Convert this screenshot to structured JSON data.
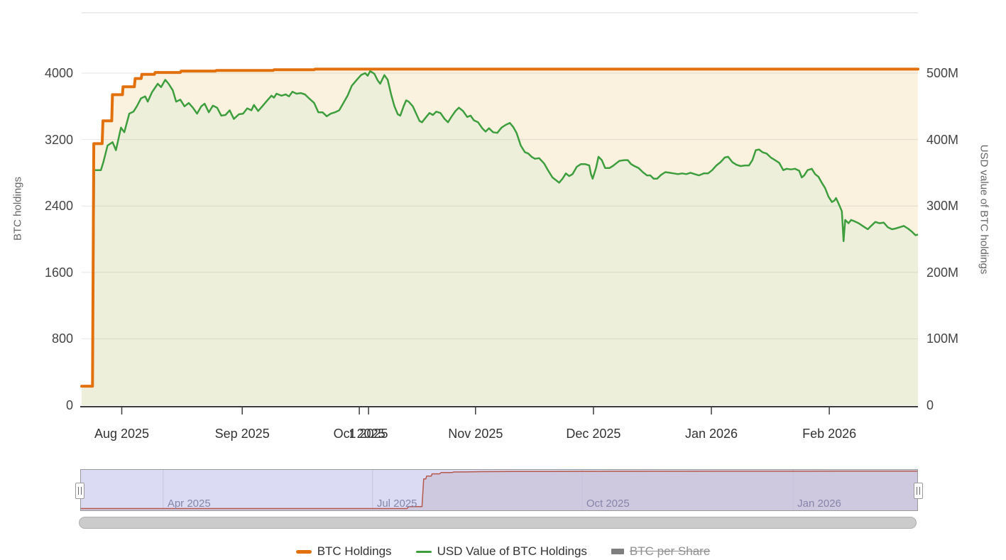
{
  "chart_data": {
    "type": "area",
    "title": "",
    "left_axis": {
      "title": "BTC holdings",
      "tick_values": [
        0,
        800,
        1600,
        2400,
        3200,
        4000
      ],
      "range": [
        0,
        4727
      ],
      "unit": "BTC"
    },
    "right_axis": {
      "title": "USD value of BTC holdings",
      "tick_labels": [
        "0",
        "100M",
        "200M",
        "300M",
        "400M",
        "500M"
      ],
      "tick_values": [
        0,
        100,
        200,
        300,
        400,
        500
      ],
      "range": [
        0,
        591
      ],
      "unit": "USD millions"
    },
    "x_axis": {
      "ticks": [
        {
          "label": "Aug 2025",
          "t": 0.048
        },
        {
          "label": "Sep 2025",
          "t": 0.192
        },
        {
          "label": "Oct 2025",
          "t": 0.332
        },
        {
          "label": "1 2025",
          "t": 0.343,
          "overlapping": true
        },
        {
          "label": "Nov 2025",
          "t": 0.471
        },
        {
          "label": "Dec 2025",
          "t": 0.612
        },
        {
          "label": "Jan 2026",
          "t": 0.753
        },
        {
          "label": "Feb 2026",
          "t": 0.894
        }
      ]
    },
    "series": [
      {
        "name": "BTC Holdings",
        "axis": "left",
        "color": "#E2710D",
        "fill": "#FAF2DF",
        "line_width": 4,
        "points": [
          [
            0.0,
            230
          ],
          [
            0.013,
            230
          ],
          [
            0.0145,
            3150
          ],
          [
            0.0245,
            3150
          ],
          [
            0.0255,
            3425
          ],
          [
            0.036,
            3425
          ],
          [
            0.0368,
            3740
          ],
          [
            0.0488,
            3740
          ],
          [
            0.0495,
            3835
          ],
          [
            0.063,
            3835
          ],
          [
            0.064,
            3935
          ],
          [
            0.0712,
            3935
          ],
          [
            0.072,
            3985
          ],
          [
            0.087,
            3985
          ],
          [
            0.0878,
            4008
          ],
          [
            0.118,
            4008
          ],
          [
            0.119,
            4025
          ],
          [
            0.16,
            4025
          ],
          [
            0.161,
            4032
          ],
          [
            0.229,
            4032
          ],
          [
            0.23,
            4040
          ],
          [
            0.278,
            4040
          ],
          [
            0.279,
            4048
          ],
          [
            1.0,
            4048
          ]
        ]
      },
      {
        "name": "USD Value of BTC Holdings",
        "axis": "right",
        "color": "#3E9E3E",
        "fill": "#EDEFDB",
        "line_width": 2.5,
        "points": [
          [
            0.0,
            29
          ],
          [
            0.013,
            29
          ],
          [
            0.015,
            354
          ],
          [
            0.023,
            354
          ],
          [
            0.026,
            366
          ],
          [
            0.031,
            391
          ],
          [
            0.037,
            396
          ],
          [
            0.041,
            384
          ],
          [
            0.047,
            418
          ],
          [
            0.051,
            411
          ],
          [
            0.057,
            439
          ],
          [
            0.062,
            442
          ],
          [
            0.066,
            450
          ],
          [
            0.071,
            462
          ],
          [
            0.076,
            465
          ],
          [
            0.079,
            457
          ],
          [
            0.084,
            471
          ],
          [
            0.091,
            484
          ],
          [
            0.095,
            479
          ],
          [
            0.1,
            490
          ],
          [
            0.104,
            484
          ],
          [
            0.109,
            474
          ],
          [
            0.113,
            457
          ],
          [
            0.118,
            460
          ],
          [
            0.123,
            450
          ],
          [
            0.128,
            455
          ],
          [
            0.133,
            448
          ],
          [
            0.138,
            439
          ],
          [
            0.143,
            450
          ],
          [
            0.147,
            454
          ],
          [
            0.152,
            441
          ],
          [
            0.157,
            451
          ],
          [
            0.162,
            448
          ],
          [
            0.167,
            436
          ],
          [
            0.172,
            437
          ],
          [
            0.177,
            444
          ],
          [
            0.182,
            431
          ],
          [
            0.188,
            438
          ],
          [
            0.193,
            439
          ],
          [
            0.198,
            447
          ],
          [
            0.203,
            444
          ],
          [
            0.206,
            452
          ],
          [
            0.211,
            443
          ],
          [
            0.216,
            450
          ],
          [
            0.222,
            459
          ],
          [
            0.227,
            466
          ],
          [
            0.23,
            463
          ],
          [
            0.233,
            469
          ],
          [
            0.239,
            466
          ],
          [
            0.244,
            468
          ],
          [
            0.248,
            465
          ],
          [
            0.252,
            472
          ],
          [
            0.257,
            469
          ],
          [
            0.262,
            470
          ],
          [
            0.267,
            468
          ],
          [
            0.272,
            462
          ],
          [
            0.278,
            455
          ],
          [
            0.283,
            441
          ],
          [
            0.288,
            441
          ],
          [
            0.293,
            435
          ],
          [
            0.298,
            439
          ],
          [
            0.303,
            441
          ],
          [
            0.308,
            444
          ],
          [
            0.313,
            455
          ],
          [
            0.318,
            466
          ],
          [
            0.323,
            481
          ],
          [
            0.329,
            490
          ],
          [
            0.334,
            497
          ],
          [
            0.339,
            500
          ],
          [
            0.342,
            496
          ],
          [
            0.345,
            503
          ],
          [
            0.35,
            499
          ],
          [
            0.354,
            489
          ],
          [
            0.357,
            484
          ],
          [
            0.362,
            497
          ],
          [
            0.366,
            490
          ],
          [
            0.37,
            468
          ],
          [
            0.374,
            450
          ],
          [
            0.378,
            438
          ],
          [
            0.381,
            436
          ],
          [
            0.385,
            450
          ],
          [
            0.388,
            459
          ],
          [
            0.391,
            457
          ],
          [
            0.396,
            450
          ],
          [
            0.4,
            439
          ],
          [
            0.404,
            428
          ],
          [
            0.407,
            426
          ],
          [
            0.412,
            434
          ],
          [
            0.416,
            440
          ],
          [
            0.42,
            437
          ],
          [
            0.424,
            442
          ],
          [
            0.429,
            440
          ],
          [
            0.434,
            431
          ],
          [
            0.438,
            426
          ],
          [
            0.442,
            434
          ],
          [
            0.447,
            443
          ],
          [
            0.451,
            448
          ],
          [
            0.456,
            443
          ],
          [
            0.461,
            434
          ],
          [
            0.465,
            436
          ],
          [
            0.469,
            429
          ],
          [
            0.474,
            426
          ],
          [
            0.479,
            417
          ],
          [
            0.483,
            412
          ],
          [
            0.487,
            417
          ],
          [
            0.492,
            411
          ],
          [
            0.497,
            410
          ],
          [
            0.502,
            418
          ],
          [
            0.507,
            422
          ],
          [
            0.512,
            425
          ],
          [
            0.516,
            419
          ],
          [
            0.52,
            410
          ],
          [
            0.525,
            391
          ],
          [
            0.53,
            381
          ],
          [
            0.534,
            379
          ],
          [
            0.538,
            374
          ],
          [
            0.542,
            371
          ],
          [
            0.547,
            372
          ],
          [
            0.553,
            364
          ],
          [
            0.558,
            353
          ],
          [
            0.563,
            343
          ],
          [
            0.568,
            338
          ],
          [
            0.571,
            335
          ],
          [
            0.575,
            341
          ],
          [
            0.579,
            349
          ],
          [
            0.583,
            345
          ],
          [
            0.587,
            348
          ],
          [
            0.592,
            359
          ],
          [
            0.597,
            363
          ],
          [
            0.602,
            363
          ],
          [
            0.607,
            361
          ],
          [
            0.609,
            348
          ],
          [
            0.611,
            341
          ],
          [
            0.615,
            357
          ],
          [
            0.618,
            374
          ],
          [
            0.622,
            369
          ],
          [
            0.626,
            357
          ],
          [
            0.631,
            357
          ],
          [
            0.635,
            360
          ],
          [
            0.639,
            364
          ],
          [
            0.643,
            368
          ],
          [
            0.649,
            369
          ],
          [
            0.653,
            369
          ],
          [
            0.657,
            363
          ],
          [
            0.661,
            360
          ],
          [
            0.666,
            357
          ],
          [
            0.671,
            351
          ],
          [
            0.676,
            346
          ],
          [
            0.68,
            346
          ],
          [
            0.684,
            341
          ],
          [
            0.688,
            341
          ],
          [
            0.693,
            347
          ],
          [
            0.698,
            351
          ],
          [
            0.703,
            350
          ],
          [
            0.708,
            349
          ],
          [
            0.713,
            348
          ],
          [
            0.718,
            349
          ],
          [
            0.723,
            348
          ],
          [
            0.728,
            350
          ],
          [
            0.733,
            348
          ],
          [
            0.738,
            346
          ],
          [
            0.744,
            349
          ],
          [
            0.749,
            349
          ],
          [
            0.754,
            354
          ],
          [
            0.759,
            361
          ],
          [
            0.764,
            366
          ],
          [
            0.769,
            373
          ],
          [
            0.773,
            374
          ],
          [
            0.778,
            366
          ],
          [
            0.783,
            362
          ],
          [
            0.788,
            360
          ],
          [
            0.793,
            361
          ],
          [
            0.798,
            361
          ],
          [
            0.802,
            369
          ],
          [
            0.806,
            384
          ],
          [
            0.81,
            385
          ],
          [
            0.814,
            381
          ],
          [
            0.819,
            379
          ],
          [
            0.824,
            373
          ],
          [
            0.829,
            369
          ],
          [
            0.834,
            365
          ],
          [
            0.839,
            354
          ],
          [
            0.843,
            356
          ],
          [
            0.848,
            355
          ],
          [
            0.853,
            356
          ],
          [
            0.858,
            353
          ],
          [
            0.861,
            343
          ],
          [
            0.864,
            346
          ],
          [
            0.868,
            354
          ],
          [
            0.873,
            356
          ],
          [
            0.877,
            348
          ],
          [
            0.881,
            344
          ],
          [
            0.885,
            335
          ],
          [
            0.889,
            327
          ],
          [
            0.893,
            314
          ],
          [
            0.897,
            306
          ],
          [
            0.9,
            308
          ],
          [
            0.902,
            312
          ],
          [
            0.906,
            301
          ],
          [
            0.909,
            292
          ],
          [
            0.911,
            247
          ],
          [
            0.913,
            279
          ],
          [
            0.917,
            274
          ],
          [
            0.92,
            279
          ],
          [
            0.924,
            277
          ],
          [
            0.929,
            274
          ],
          [
            0.935,
            269
          ],
          [
            0.94,
            265
          ],
          [
            0.944,
            270
          ],
          [
            0.949,
            276
          ],
          [
            0.954,
            274
          ],
          [
            0.959,
            275
          ],
          [
            0.964,
            268
          ],
          [
            0.969,
            265
          ],
          [
            0.973,
            266
          ],
          [
            0.978,
            268
          ],
          [
            0.983,
            270
          ],
          [
            0.988,
            266
          ],
          [
            0.993,
            261
          ],
          [
            0.997,
            256
          ],
          [
            1.0,
            257
          ]
        ]
      },
      {
        "name": "BTC per Share",
        "disabled": true,
        "color": "#7F7F7F"
      }
    ],
    "navigator": {
      "mask_color": "#DBDBF4",
      "area_color": "#CFC9E0",
      "line_color": "#B4594B",
      "range": [
        0,
        4300
      ],
      "labels": [
        {
          "label": "Apr 2025",
          "t": 0.099
        },
        {
          "label": "Jul 2025",
          "t": 0.349
        },
        {
          "label": "Oct 2025",
          "t": 0.599
        },
        {
          "label": "Jan 2026",
          "t": 0.851
        }
      ],
      "points": [
        [
          0.0,
          180
        ],
        [
          0.39,
          180
        ],
        [
          0.392,
          380
        ],
        [
          0.408,
          380
        ],
        [
          0.41,
          3240
        ],
        [
          0.4125,
          3240
        ],
        [
          0.4135,
          3530
        ],
        [
          0.419,
          3530
        ],
        [
          0.42,
          3760
        ],
        [
          0.429,
          3760
        ],
        [
          0.431,
          3900
        ],
        [
          0.444,
          3900
        ],
        [
          0.446,
          3950
        ],
        [
          0.46,
          3960
        ],
        [
          0.48,
          3990
        ],
        [
          0.52,
          4005
        ],
        [
          0.56,
          4015
        ],
        [
          0.64,
          4025
        ],
        [
          0.78,
          4035
        ],
        [
          0.9,
          4040
        ],
        [
          1.0,
          4048
        ]
      ]
    }
  },
  "legend": {
    "items": [
      {
        "label": "BTC Holdings",
        "marker": "line-orange",
        "disabled": false
      },
      {
        "label": "USD Value of BTC Holdings",
        "marker": "line-green",
        "disabled": false
      },
      {
        "label": "BTC per Share",
        "marker": "bar-gray",
        "disabled": true
      }
    ]
  }
}
